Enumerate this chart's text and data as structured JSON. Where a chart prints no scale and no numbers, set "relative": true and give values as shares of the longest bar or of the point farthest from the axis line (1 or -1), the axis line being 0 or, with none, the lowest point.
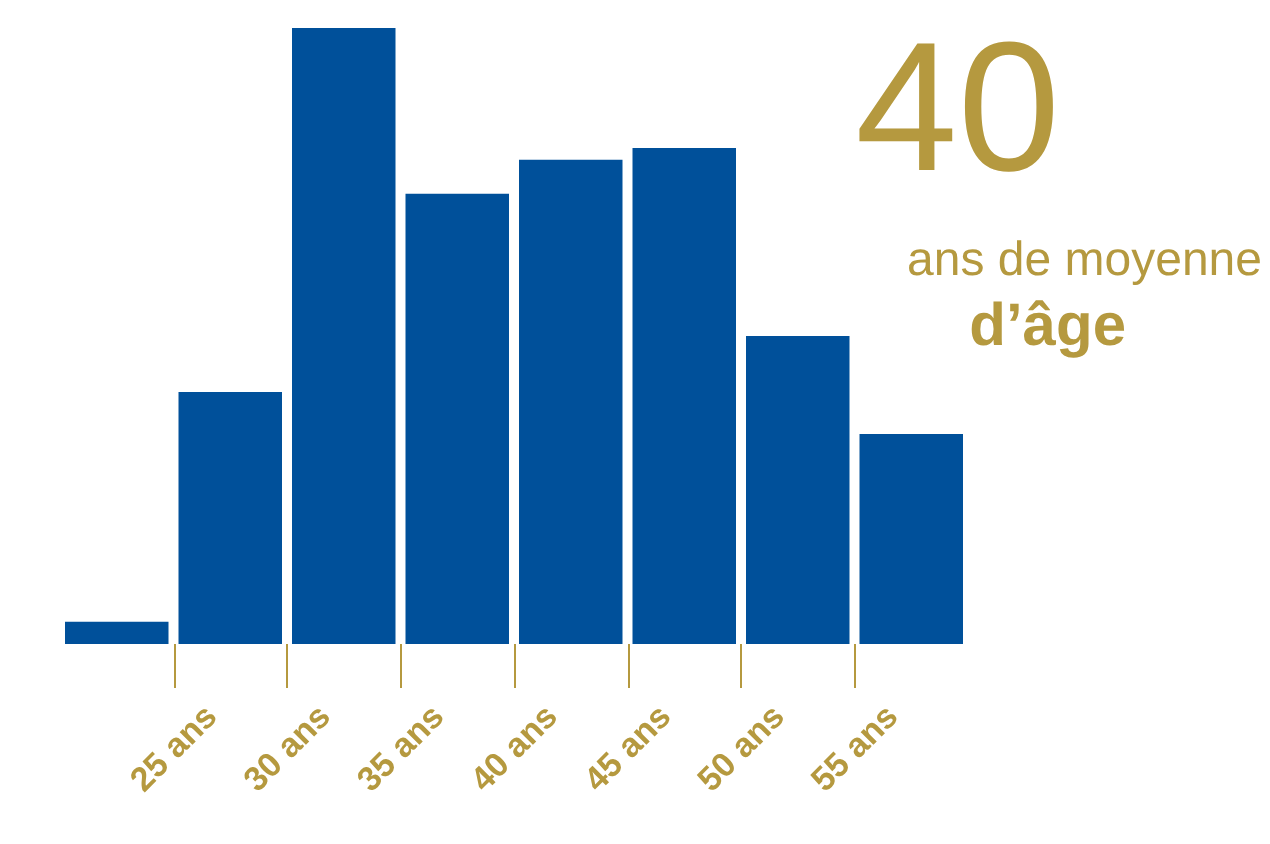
{
  "chart_data": {
    "type": "bar",
    "relative": true,
    "x": [
      22.5,
      27.5,
      32.5,
      37.5,
      42.5,
      47.5,
      52.5,
      57.5
    ],
    "values": [
      0.036,
      0.409,
      1,
      0.731,
      0.786,
      0.805,
      0.5,
      0.341
    ],
    "color": "#00509a",
    "xlim": [
      20,
      60
    ],
    "xticks": [
      {
        "value": 25,
        "label": "25 ans"
      },
      {
        "value": 30,
        "label": "30 ans"
      },
      {
        "value": 35,
        "label": "35 ans"
      },
      {
        "value": 40,
        "label": "40 ans"
      },
      {
        "value": 45,
        "label": "45 ans"
      },
      {
        "value": 50,
        "label": "50 ans"
      },
      {
        "value": 55,
        "label": "55 ans"
      }
    ],
    "annotations": [
      "40",
      "ans de moyenne",
      "d’âge"
    ],
    "tick_labels": "x",
    "grid": false
  }
}
